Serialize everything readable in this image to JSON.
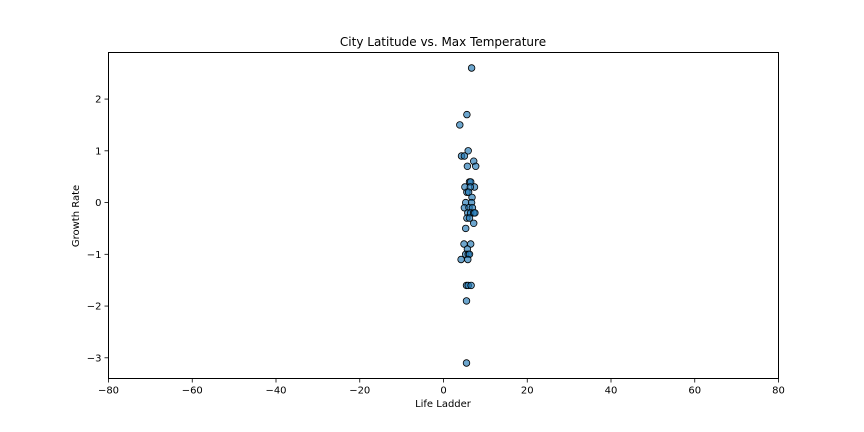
{
  "chart_data": {
    "type": "scatter",
    "title": "City Latitude vs. Max Temperature",
    "xlabel": "Life Ladder",
    "ylabel": "Growth Rate",
    "xlim": [
      -80,
      80
    ],
    "ylim": [
      -3.4,
      2.9
    ],
    "xticks": [
      -80,
      -60,
      -40,
      -20,
      0,
      20,
      40,
      60,
      80
    ],
    "yticks": [
      -3,
      -2,
      -1,
      0,
      1,
      2
    ],
    "grid": false,
    "point_color": "#1f77b4",
    "point_edge_color": "#000000",
    "points": [
      {
        "x": 6.7,
        "y": 2.6
      },
      {
        "x": 5.6,
        "y": 1.7
      },
      {
        "x": 3.9,
        "y": 1.5
      },
      {
        "x": 5.9,
        "y": 1.0
      },
      {
        "x": 4.3,
        "y": 0.9
      },
      {
        "x": 5.0,
        "y": 0.9
      },
      {
        "x": 7.2,
        "y": 0.8
      },
      {
        "x": 5.7,
        "y": 0.7
      },
      {
        "x": 7.7,
        "y": 0.7
      },
      {
        "x": 6.2,
        "y": 0.4
      },
      {
        "x": 6.5,
        "y": 0.4
      },
      {
        "x": 5.1,
        "y": 0.3
      },
      {
        "x": 7.4,
        "y": 0.3
      },
      {
        "x": 6.4,
        "y": 0.3
      },
      {
        "x": 5.6,
        "y": 0.2
      },
      {
        "x": 6.0,
        "y": 0.2
      },
      {
        "x": 6.8,
        "y": 0.1
      },
      {
        "x": 5.3,
        "y": 0.0
      },
      {
        "x": 6.7,
        "y": 0.0
      },
      {
        "x": 5.0,
        "y": -0.1
      },
      {
        "x": 6.1,
        "y": -0.1
      },
      {
        "x": 6.9,
        "y": -0.1
      },
      {
        "x": 5.8,
        "y": -0.2
      },
      {
        "x": 6.5,
        "y": -0.2
      },
      {
        "x": 7.2,
        "y": -0.2
      },
      {
        "x": 7.5,
        "y": -0.2
      },
      {
        "x": 5.6,
        "y": -0.3
      },
      {
        "x": 6.2,
        "y": -0.3
      },
      {
        "x": 7.2,
        "y": -0.4
      },
      {
        "x": 5.3,
        "y": -0.5
      },
      {
        "x": 4.9,
        "y": -0.8
      },
      {
        "x": 6.5,
        "y": -0.8
      },
      {
        "x": 5.7,
        "y": -0.9
      },
      {
        "x": 5.3,
        "y": -1.0
      },
      {
        "x": 5.9,
        "y": -1.0
      },
      {
        "x": 6.2,
        "y": -1.0
      },
      {
        "x": 4.2,
        "y": -1.1
      },
      {
        "x": 5.8,
        "y": -1.1
      },
      {
        "x": 5.5,
        "y": -1.6
      },
      {
        "x": 5.9,
        "y": -1.6
      },
      {
        "x": 6.6,
        "y": -1.6
      },
      {
        "x": 5.5,
        "y": -1.9
      },
      {
        "x": 5.5,
        "y": -3.1
      }
    ]
  }
}
